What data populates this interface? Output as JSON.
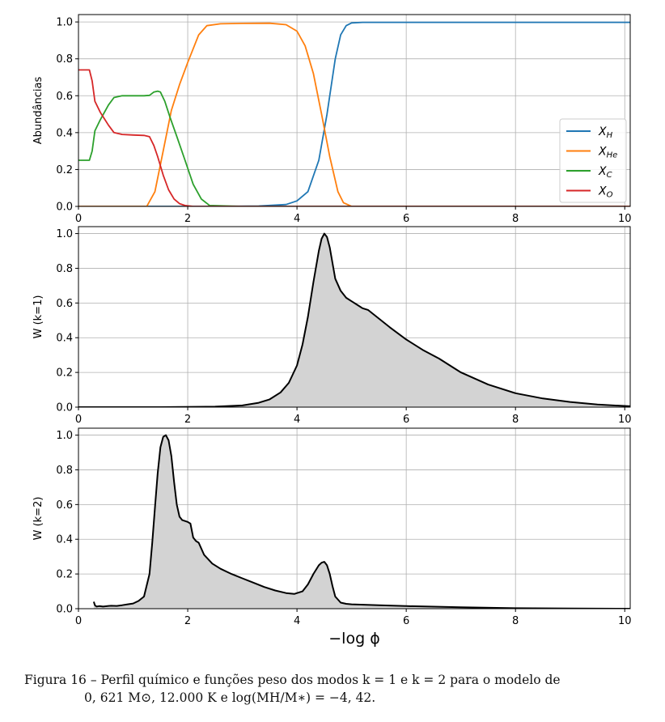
{
  "chart_data": [
    {
      "type": "line",
      "title": "",
      "xlabel": "",
      "ylabel": "Abundâncias",
      "xlim": [
        0,
        10.1
      ],
      "ylim": [
        0,
        1.04
      ],
      "xticks": [
        0,
        2,
        4,
        6,
        8,
        10
      ],
      "yticks": [
        "0.0",
        "0.2",
        "0.4",
        "0.6",
        "0.8",
        "1.0"
      ],
      "grid": true,
      "legend_position": "center-right",
      "legend": [
        {
          "label": "X_H",
          "base": "X",
          "sub": "H",
          "color": "#1f77b4"
        },
        {
          "label": "X_He",
          "base": "X",
          "sub": "He",
          "color": "#ff7f0e"
        },
        {
          "label": "X_C",
          "base": "X",
          "sub": "C",
          "color": "#2ca02c"
        },
        {
          "label": "X_O",
          "base": "X",
          "sub": "O",
          "color": "#d62728"
        }
      ],
      "series": [
        {
          "name": "X_H",
          "color": "#1f77b4",
          "x": [
            0,
            2.5,
            3.3,
            3.8,
            4.0,
            4.2,
            4.4,
            4.55,
            4.7,
            4.8,
            4.9,
            5.0,
            5.2,
            10.1
          ],
          "values": [
            0,
            0,
            0.002,
            0.01,
            0.03,
            0.08,
            0.25,
            0.5,
            0.8,
            0.93,
            0.98,
            0.995,
            0.998,
            0.998
          ]
        },
        {
          "name": "X_He",
          "color": "#ff7f0e",
          "x": [
            0,
            1.25,
            1.4,
            1.55,
            1.7,
            1.85,
            2.0,
            2.2,
            2.35,
            2.6,
            3.0,
            3.5,
            3.8,
            4.0,
            4.15,
            4.3,
            4.45,
            4.6,
            4.75,
            4.85,
            5.0,
            10.1
          ],
          "values": [
            0,
            0,
            0.08,
            0.3,
            0.52,
            0.66,
            0.78,
            0.93,
            0.98,
            0.99,
            0.992,
            0.993,
            0.985,
            0.95,
            0.87,
            0.72,
            0.5,
            0.27,
            0.08,
            0.02,
            0,
            0
          ]
        },
        {
          "name": "X_C",
          "color": "#2ca02c",
          "x": [
            0,
            0.2,
            0.25,
            0.3,
            0.4,
            0.55,
            0.65,
            0.8,
            1.0,
            1.2,
            1.3,
            1.38,
            1.45,
            1.5,
            1.58,
            1.68,
            1.8,
            1.95,
            2.1,
            2.25,
            2.4,
            3.0,
            10.1
          ],
          "values": [
            0.25,
            0.25,
            0.3,
            0.41,
            0.47,
            0.55,
            0.59,
            0.6,
            0.6,
            0.6,
            0.602,
            0.62,
            0.625,
            0.62,
            0.57,
            0.48,
            0.38,
            0.25,
            0.12,
            0.04,
            0.005,
            0,
            0
          ]
        },
        {
          "name": "X_O",
          "color": "#d62728",
          "x": [
            0,
            0.2,
            0.25,
            0.3,
            0.4,
            0.55,
            0.65,
            0.8,
            1.0,
            1.2,
            1.3,
            1.38,
            1.45,
            1.55,
            1.65,
            1.75,
            1.85,
            1.95,
            2.1,
            10.1
          ],
          "values": [
            0.74,
            0.74,
            0.68,
            0.57,
            0.51,
            0.44,
            0.4,
            0.39,
            0.387,
            0.385,
            0.378,
            0.33,
            0.27,
            0.17,
            0.09,
            0.04,
            0.015,
            0.005,
            0,
            0
          ]
        }
      ]
    },
    {
      "type": "area",
      "title": "",
      "xlabel": "",
      "ylabel": "W (k=1)",
      "xlim": [
        0,
        10.1
      ],
      "ylim": [
        0,
        1.04
      ],
      "xticks": [
        0,
        2,
        4,
        6,
        8,
        10
      ],
      "yticks": [
        "0.0",
        "0.2",
        "0.4",
        "0.6",
        "0.8",
        "1.0"
      ],
      "grid": true,
      "fill_color": "#d3d3d3",
      "series": [
        {
          "name": "W (k=1)",
          "color": "#000000",
          "x": [
            0,
            1.5,
            2.5,
            3.0,
            3.3,
            3.5,
            3.7,
            3.85,
            4.0,
            4.1,
            4.2,
            4.3,
            4.4,
            4.45,
            4.5,
            4.55,
            4.6,
            4.65,
            4.7,
            4.8,
            4.9,
            5.0,
            5.1,
            5.2,
            5.3,
            5.5,
            5.7,
            6.0,
            6.3,
            6.6,
            7.0,
            7.5,
            8.0,
            8.5,
            9.0,
            9.5,
            10.1
          ],
          "values": [
            0,
            0.0,
            0.003,
            0.01,
            0.025,
            0.045,
            0.085,
            0.14,
            0.24,
            0.36,
            0.52,
            0.72,
            0.9,
            0.97,
            1.0,
            0.98,
            0.92,
            0.83,
            0.74,
            0.67,
            0.63,
            0.61,
            0.59,
            0.57,
            0.56,
            0.51,
            0.46,
            0.39,
            0.33,
            0.28,
            0.2,
            0.13,
            0.08,
            0.05,
            0.03,
            0.015,
            0.005
          ]
        }
      ]
    },
    {
      "type": "area",
      "title": "",
      "xlabel": "−log ϕ",
      "ylabel": "W (k=2)",
      "xlim": [
        0,
        10.1
      ],
      "ylim": [
        0,
        1.04
      ],
      "xticks": [
        0,
        2,
        4,
        6,
        8,
        10
      ],
      "yticks": [
        "0.0",
        "0.2",
        "0.4",
        "0.6",
        "0.8",
        "1.0"
      ],
      "grid": true,
      "fill_color": "#d3d3d3",
      "series": [
        {
          "name": "W (k=2)",
          "color": "#000000",
          "x": [
            0.28,
            0.3,
            0.33,
            0.38,
            0.45,
            0.5,
            0.55,
            0.6,
            0.7,
            0.8,
            0.9,
            1.0,
            1.1,
            1.2,
            1.3,
            1.35,
            1.4,
            1.45,
            1.5,
            1.55,
            1.6,
            1.65,
            1.7,
            1.75,
            1.8,
            1.85,
            1.9,
            1.95,
            2.0,
            2.05,
            2.1,
            2.15,
            2.2,
            2.3,
            2.45,
            2.6,
            2.8,
            3.0,
            3.2,
            3.4,
            3.6,
            3.8,
            3.95,
            4.1,
            4.2,
            4.3,
            4.4,
            4.45,
            4.5,
            4.55,
            4.6,
            4.65,
            4.7,
            4.8,
            4.9,
            5.0,
            5.5,
            6.0,
            7.0,
            8.0,
            9.0,
            10.1
          ],
          "values": [
            0.04,
            0.02,
            0.012,
            0.015,
            0.012,
            0.014,
            0.016,
            0.017,
            0.016,
            0.02,
            0.025,
            0.03,
            0.045,
            0.07,
            0.2,
            0.38,
            0.58,
            0.78,
            0.93,
            0.99,
            1.0,
            0.97,
            0.88,
            0.73,
            0.6,
            0.53,
            0.51,
            0.505,
            0.5,
            0.49,
            0.41,
            0.39,
            0.38,
            0.31,
            0.26,
            0.23,
            0.2,
            0.175,
            0.15,
            0.125,
            0.105,
            0.09,
            0.085,
            0.1,
            0.14,
            0.2,
            0.25,
            0.265,
            0.27,
            0.25,
            0.2,
            0.13,
            0.07,
            0.035,
            0.028,
            0.025,
            0.02,
            0.015,
            0.008,
            0.003,
            0.001,
            0.0
          ]
        }
      ]
    }
  ],
  "caption": {
    "line1": "Figura 16 – Perfil químico e funções peso dos modos k = 1 e k = 2 para o modelo de",
    "line2": "0, 621 M⊙, 12.000 K e log(MH/M∗) = −4, 42."
  }
}
